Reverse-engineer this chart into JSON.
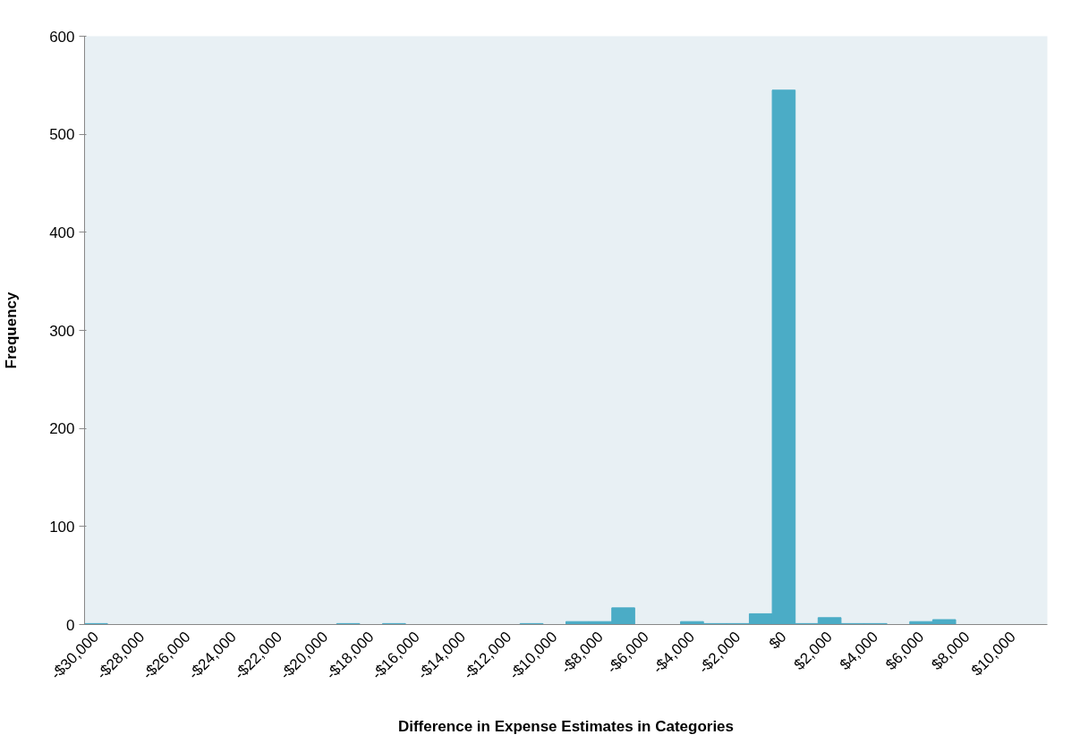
{
  "chart_data": {
    "type": "bar",
    "xlabel": "Difference in Expense Estimates in Categories",
    "ylabel": "Frequency",
    "categories": [
      "-$30,000",
      null,
      "-$28,000",
      null,
      "-$26,000",
      null,
      "-$24,000",
      null,
      "-$22,000",
      null,
      "-$20,000",
      null,
      "-$18,000",
      null,
      "-$16,000",
      null,
      "-$14,000",
      null,
      "-$12,000",
      null,
      "-$10,000",
      null,
      "-$8,000",
      null,
      "-$6,000",
      null,
      "-$4,000",
      null,
      "-$2,000",
      null,
      "$0",
      null,
      "$2,000",
      null,
      "$4,000",
      null,
      "$6,000",
      null,
      "$8,000",
      null,
      "$10,000",
      null
    ],
    "values": [
      1,
      0,
      0,
      0,
      0,
      0,
      0,
      0,
      0,
      0,
      0,
      1,
      0,
      1,
      0,
      0,
      0,
      0,
      0,
      1,
      0,
      3,
      3,
      17,
      0,
      0,
      3,
      1,
      1,
      11,
      545,
      1,
      7,
      1,
      1,
      0,
      3,
      5,
      0,
      0,
      0,
      0
    ],
    "color": "#4bacc6",
    "ylim": [
      0,
      600
    ],
    "yticks": [
      0,
      100,
      200,
      300,
      400,
      500,
      600
    ],
    "grid": false
  }
}
